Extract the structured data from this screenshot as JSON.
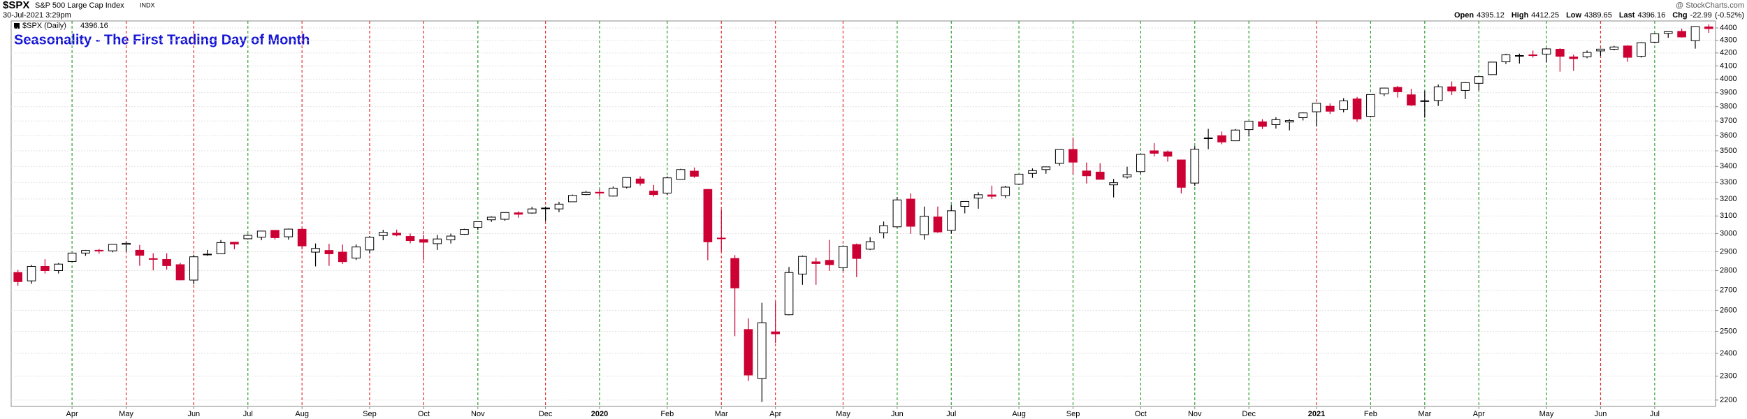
{
  "header": {
    "symbol": "$SPX",
    "name": "S&P 500 Large Cap Index",
    "exchange": "INDX",
    "timestamp": "30-Jul-2021 3:29pm",
    "brand": "@ StockCharts.com",
    "stats": [
      {
        "label": "Open",
        "value": 4395.12
      },
      {
        "label": "High",
        "value": 4412.25
      },
      {
        "label": "Low",
        "value": 4389.65
      },
      {
        "label": "Last",
        "value": 4396.16
      },
      {
        "label": "Chg",
        "value": -22.99
      }
    ],
    "change_pct": "(-0.52%)"
  },
  "chart_data": {
    "type": "candlestick",
    "annotation": "Seasonality - The First Trading Day of Month",
    "legend_label": "$SPX (Daily)",
    "log_scale": true,
    "grid": true,
    "up_color": "#000000",
    "down_color": "#cc0033",
    "annotation_color": "#1515d6",
    "ylim": [
      2174,
      4458
    ],
    "yticks": [
      2200,
      2300,
      2400,
      2500,
      2600,
      2700,
      2800,
      2900,
      3000,
      3100,
      3200,
      3300,
      3400,
      3500,
      3600,
      3700,
      3800,
      3900,
      4000,
      4100,
      4200,
      4300,
      4400
    ],
    "categories": [
      null,
      null,
      null,
      null,
      "Apr",
      null,
      null,
      null,
      "May",
      null,
      null,
      null,
      null,
      "Jun",
      null,
      null,
      null,
      "Jul",
      null,
      null,
      null,
      "Aug",
      null,
      null,
      null,
      null,
      "Sep",
      null,
      null,
      null,
      "Oct",
      null,
      null,
      null,
      "Nov",
      null,
      null,
      null,
      null,
      "Dec",
      null,
      null,
      null,
      "2020",
      null,
      null,
      null,
      null,
      "Feb",
      null,
      null,
      null,
      "Mar",
      null,
      null,
      null,
      "Apr",
      null,
      null,
      null,
      null,
      "May",
      null,
      null,
      null,
      "Jun",
      null,
      null,
      null,
      "Jul",
      null,
      null,
      null,
      null,
      "Aug",
      null,
      null,
      null,
      "Sep",
      null,
      null,
      null,
      null,
      "Oct",
      null,
      null,
      null,
      "Nov",
      null,
      null,
      null,
      "Dec",
      null,
      null,
      null,
      null,
      "2021",
      null,
      null,
      null,
      "Feb",
      null,
      null,
      null,
      "Mar",
      null,
      null,
      null,
      "Apr",
      null,
      null,
      null,
      null,
      "May",
      null,
      null,
      null,
      "Jun",
      null,
      null,
      null,
      "Jul",
      null,
      null,
      null,
      null
    ],
    "category_line_colors": [
      null,
      null,
      null,
      null,
      "#2e9e2e",
      null,
      null,
      null,
      "#e03030",
      null,
      null,
      null,
      null,
      "#e03030",
      null,
      null,
      null,
      "#2e9e2e",
      null,
      null,
      null,
      "#e03030",
      null,
      null,
      null,
      null,
      "#e03030",
      null,
      null,
      null,
      "#e03030",
      null,
      null,
      null,
      "#2e9e2e",
      null,
      null,
      null,
      null,
      "#e03030",
      null,
      null,
      null,
      "#2e9e2e",
      null,
      null,
      null,
      null,
      "#2e9e2e",
      null,
      null,
      null,
      "#e03030",
      null,
      null,
      null,
      "#e03030",
      null,
      null,
      null,
      null,
      "#e03030",
      null,
      null,
      null,
      "#2e9e2e",
      null,
      null,
      null,
      "#2e9e2e",
      null,
      null,
      null,
      null,
      "#2e9e2e",
      null,
      null,
      null,
      "#2e9e2e",
      null,
      null,
      null,
      null,
      "#2e9e2e",
      null,
      null,
      null,
      "#2e9e2e",
      null,
      null,
      null,
      "#2e9e2e",
      null,
      null,
      null,
      null,
      "#e03030",
      null,
      null,
      null,
      "#2e9e2e",
      null,
      null,
      null,
      "#2e9e2e",
      null,
      null,
      null,
      "#2e9e2e",
      null,
      null,
      null,
      null,
      "#2e9e2e",
      null,
      null,
      null,
      "#e03030",
      null,
      null,
      null,
      "#2e9e2e",
      null,
      null,
      null,
      null
    ],
    "open": [
      2790,
      2747,
      2822,
      2800,
      2848,
      2893,
      2908,
      2905,
      2940,
      2908,
      2863,
      2859,
      2831,
      2751,
      2885,
      2889,
      2952,
      2971,
      2980,
      3018,
      2982,
      3024,
      2898,
      2907,
      2898,
      2866,
      2910,
      2989,
      3002,
      2984,
      2967,
      2944,
      2965,
      2996,
      3035,
      3078,
      3081,
      3118,
      3117,
      3143,
      3141,
      3183,
      3226,
      3240,
      3217,
      3271,
      3321,
      3247,
      3235,
      3318,
      3370,
      3257,
      2975,
      2864,
      2509,
      2290,
      2498,
      2579,
      2782,
      2846,
      2854,
      2815,
      2939,
      2914,
      3004,
      3038,
      3199,
      2994,
      3094,
      3018,
      3156,
      3205,
      3224,
      3220,
      3289,
      3356,
      3380,
      3419,
      3509,
      3371,
      3364,
      3285,
      3334,
      3367,
      3500,
      3493,
      3441,
      3296,
      3583,
      3600,
      3566,
      3641,
      3694,
      3675,
      3693,
      3723,
      3764,
      3803,
      3781,
      3855,
      3732,
      3892,
      3939,
      3885,
      3842,
      3844,
      3943,
      3917,
      3969,
      4034,
      4131,
      4179,
      4185,
      4191,
      4229,
      4169,
      4170,
      4216,
      4229,
      4255,
      4174,
      4285,
      4356,
      4372,
      4297,
      4409
    ],
    "high": [
      2804,
      2830,
      2860,
      2840,
      2893,
      2910,
      2915,
      2940,
      2954,
      2937,
      2892,
      2892,
      2841,
      2884,
      2910,
      2964,
      2954,
      2996,
      3014,
      3018,
      3028,
      3029,
      2945,
      2943,
      2939,
      2940,
      2985,
      3021,
      3022,
      3000,
      2993,
      2993,
      3000,
      3027,
      3067,
      3098,
      3120,
      3127,
      3154,
      3155,
      3183,
      3226,
      3248,
      3258,
      3275,
      3330,
      3337,
      3285,
      3337,
      3385,
      3393,
      3260,
      3137,
      2882,
      2562,
      2637,
      2641,
      2819,
      2880,
      2868,
      2965,
      2935,
      2945,
      2980,
      3068,
      3211,
      3233,
      3155,
      3155,
      3165,
      3186,
      3240,
      3280,
      3279,
      3352,
      3387,
      3399,
      3509,
      3588,
      3425,
      3420,
      3321,
      3398,
      3477,
      3550,
      3502,
      3441,
      3531,
      3646,
      3628,
      3645,
      3700,
      3712,
      3726,
      3712,
      3760,
      3827,
      3823,
      3861,
      3870,
      3887,
      3937,
      3950,
      3928,
      3915,
      3960,
      3983,
      3978,
      4019,
      4131,
      4192,
      4195,
      4219,
      4238,
      4237,
      4187,
      4219,
      4234,
      4256,
      4261,
      4286,
      4356,
      4372,
      4394,
      4415,
      4430
    ],
    "low": [
      2722,
      2732,
      2785,
      2785,
      2848,
      2878,
      2890,
      2897,
      2900,
      2825,
      2801,
      2805,
      2750,
      2729,
      2878,
      2887,
      2914,
      2967,
      2963,
      2967,
      2966,
      2914,
      2822,
      2825,
      2835,
      2856,
      2891,
      2963,
      2985,
      2946,
      2856,
      2910,
      2945,
      2993,
      3020,
      3066,
      3072,
      3090,
      3113,
      3070,
      3122,
      3183,
      3222,
      3213,
      3214,
      3263,
      3281,
      3214,
      3223,
      3316,
      3328,
      2855,
      2901,
      2478,
      2280,
      2192,
      2447,
      2576,
      2727,
      2727,
      2799,
      2798,
      2766,
      2909,
      2973,
      3032,
      2999,
      2966,
      3004,
      3000,
      3115,
      3142,
      3199,
      3205,
      3284,
      3328,
      3354,
      3404,
      3349,
      3293,
      3317,
      3209,
      3324,
      3354,
      3464,
      3430,
      3233,
      3279,
      3511,
      3543,
      3566,
      3595,
      3645,
      3648,
      3636,
      3704,
      3662,
      3749,
      3760,
      3694,
      3725,
      3875,
      3865,
      3805,
      3723,
      3805,
      3884,
      3854,
      3917,
      4034,
      4114,
      4118,
      4164,
      4128,
      4056,
      4062,
      4159,
      4178,
      4221,
      4131,
      4164,
      4278,
      4320,
      4322,
      4234,
      4360
    ],
    "close": [
      2743,
      2822,
      2800,
      2834,
      2893,
      2907,
      2905,
      2940,
      2946,
      2881,
      2860,
      2826,
      2752,
      2873,
      2887,
      2950,
      2942,
      2990,
      3014,
      2977,
      3025,
      2932,
      2918,
      2889,
      2847,
      2926,
      2979,
      3007,
      2992,
      2961,
      2952,
      2970,
      2986,
      3023,
      3067,
      3093,
      3120,
      3110,
      3141,
      3146,
      3169,
      3221,
      3240,
      3235,
      3265,
      3330,
      3295,
      3226,
      3328,
      3380,
      3338,
      2954,
      2972,
      2711,
      2305,
      2541,
      2489,
      2790,
      2875,
      2837,
      2831,
      2930,
      2864,
      2955,
      3044,
      3194,
      3041,
      3098,
      3009,
      3130,
      3185,
      3225,
      3216,
      3271,
      3351,
      3373,
      3397,
      3508,
      3427,
      3341,
      3319,
      3298,
      3348,
      3477,
      3484,
      3465,
      3270,
      3510,
      3585,
      3558,
      3638,
      3699,
      3663,
      3709,
      3703,
      3756,
      3824,
      3768,
      3841,
      3714,
      3887,
      3934,
      3907,
      3811,
      3842,
      3943,
      3913,
      3974,
      4019,
      4129,
      4185,
      4180,
      4181,
      4232,
      4174,
      4156,
      4204,
      4230,
      4247,
      4166,
      4281,
      4352,
      4370,
      4327,
      4412,
      4395
    ]
  }
}
